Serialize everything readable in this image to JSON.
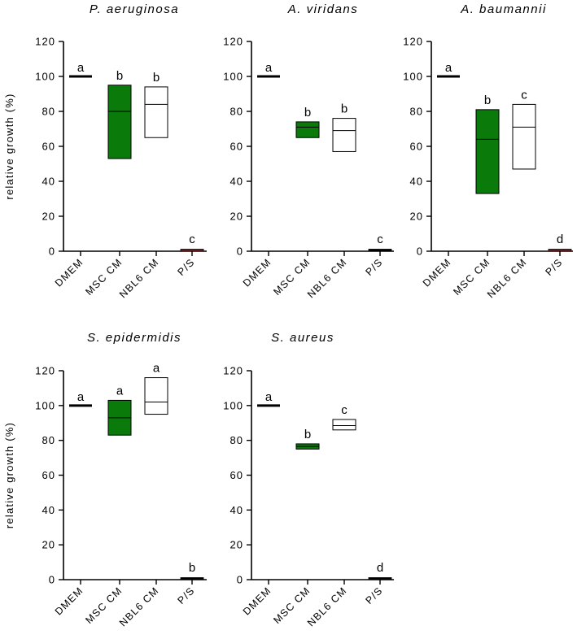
{
  "chart_data": [
    {
      "type": "box",
      "title": "P. aeruginosa",
      "ylabel": "relative growth (%)",
      "ylim": [
        0,
        120
      ],
      "yticks": [
        "0",
        "20",
        "40",
        "60",
        "80",
        "100",
        "120"
      ],
      "categories": [
        "DMEM",
        "MSC CM",
        "NBL6 CM",
        "P/S"
      ],
      "boxes": [
        {
          "min": 100,
          "median": 100,
          "max": 100,
          "letter": "a"
        },
        {
          "min": 53,
          "median": 80,
          "max": 95,
          "letter": "b"
        },
        {
          "min": 65,
          "median": 84,
          "max": 94,
          "letter": "b"
        },
        {
          "min": 0.5,
          "median": 1,
          "max": 1.5,
          "letter": "c"
        }
      ]
    },
    {
      "type": "box",
      "title": "A. viridans",
      "ylabel": "",
      "ylim": [
        0,
        120
      ],
      "yticks": [
        "0",
        "20",
        "40",
        "60",
        "80",
        "100",
        "120"
      ],
      "categories": [
        "DMEM",
        "MSC CM",
        "NBL6 CM",
        "P/S"
      ],
      "boxes": [
        {
          "min": 100,
          "median": 100,
          "max": 100,
          "letter": "a"
        },
        {
          "min": 65,
          "median": 71,
          "max": 74,
          "letter": "b"
        },
        {
          "min": 57,
          "median": 69,
          "max": 76,
          "letter": "b"
        },
        {
          "min": 0,
          "median": 0.3,
          "max": 0.6,
          "letter": "c"
        }
      ]
    },
    {
      "type": "box",
      "title": "A. baumannii",
      "ylabel": "",
      "ylim": [
        0,
        120
      ],
      "yticks": [
        "0",
        "20",
        "40",
        "60",
        "80",
        "100",
        "120"
      ],
      "categories": [
        "DMEM",
        "MSC CM",
        "NBL6 CM",
        "P/S"
      ],
      "boxes": [
        {
          "min": 100,
          "median": 100,
          "max": 100,
          "letter": "a"
        },
        {
          "min": 33,
          "median": 64,
          "max": 81,
          "letter": "b"
        },
        {
          "min": 47,
          "median": 71,
          "max": 84,
          "letter": "c"
        },
        {
          "min": 0.5,
          "median": 1,
          "max": 1.5,
          "letter": "d"
        }
      ]
    },
    {
      "type": "box",
      "title": "S. epidermidis",
      "ylabel": "relative growth (%)",
      "ylim": [
        0,
        120
      ],
      "yticks": [
        "0",
        "20",
        "40",
        "60",
        "80",
        "100",
        "120"
      ],
      "categories": [
        "DMEM",
        "MSC CM",
        "NBL6 CM",
        "P/S"
      ],
      "boxes": [
        {
          "min": 100,
          "median": 100,
          "max": 100,
          "letter": "a"
        },
        {
          "min": 83,
          "median": 93,
          "max": 103,
          "letter": "a"
        },
        {
          "min": 95,
          "median": 102,
          "max": 116,
          "letter": "a"
        },
        {
          "min": 0.3,
          "median": 0.6,
          "max": 0.9,
          "letter": "b"
        }
      ]
    },
    {
      "type": "box",
      "title": "S. aureus",
      "ylabel": "",
      "ylim": [
        0,
        120
      ],
      "yticks": [
        "0",
        "20",
        "40",
        "60",
        "80",
        "100",
        "120"
      ],
      "categories": [
        "DMEM",
        "MSC CM",
        "NBL6 CM",
        "P/S"
      ],
      "boxes": [
        {
          "min": 100,
          "median": 100,
          "max": 100,
          "letter": "a"
        },
        {
          "min": 75,
          "median": 76.5,
          "max": 78,
          "letter": "b"
        },
        {
          "min": 86,
          "median": 88.5,
          "max": 92,
          "letter": "c"
        },
        {
          "min": 0,
          "median": 0.3,
          "max": 0.6,
          "letter": "d"
        }
      ]
    }
  ],
  "colors": {
    "axis": "#000000",
    "msc_fill": "#0a7a0a",
    "nbl6_fill": "#ffffff",
    "ps_fill": "#8b1a1a",
    "dmem_line": "#000000"
  }
}
